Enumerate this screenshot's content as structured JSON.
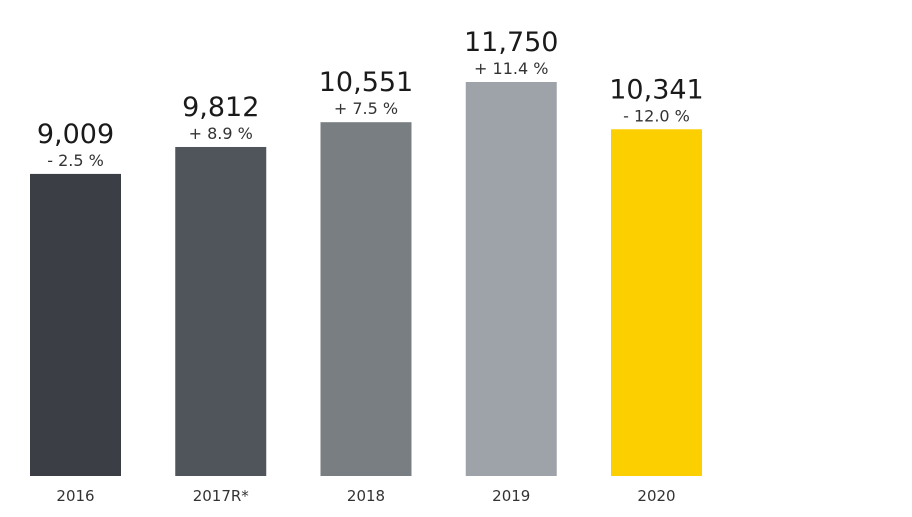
{
  "chart_data": {
    "type": "bar",
    "categories": [
      "2016",
      "2017R*",
      "2018",
      "2019",
      "2020"
    ],
    "values": [
      9009,
      9812,
      10551,
      11750,
      10341
    ],
    "value_labels": [
      "9,009",
      "9,812",
      "10,551",
      "11,750",
      "10,341"
    ],
    "change_labels": [
      "- 2.5 %",
      "+ 8.9 %",
      "+ 7.5 %",
      "+ 11.4 %",
      "- 12.0 %"
    ],
    "colors": [
      "#3b3f45",
      "#50555b",
      "#787e82",
      "#9da3a9",
      "#fcd000"
    ],
    "ylim": [
      0,
      12000
    ],
    "grid": false,
    "legend": "none"
  }
}
